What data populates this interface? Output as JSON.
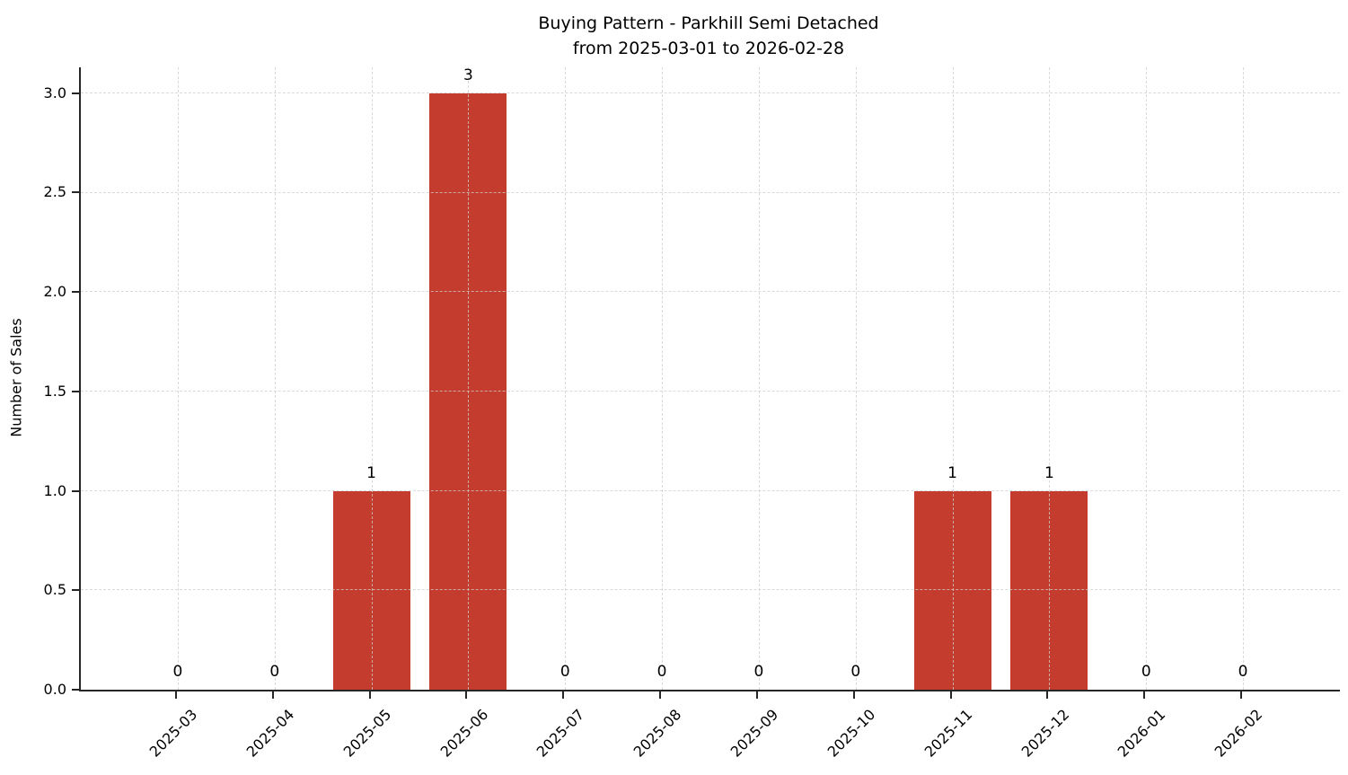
{
  "chart_data": {
    "type": "bar",
    "title": "Buying Pattern - Parkhill Semi Detached",
    "subtitle": "from 2025-03-01 to 2026-02-28",
    "xlabel": "",
    "ylabel": "Number of Sales",
    "categories": [
      "2025-03",
      "2025-04",
      "2025-05",
      "2025-06",
      "2025-07",
      "2025-08",
      "2025-09",
      "2025-10",
      "2025-11",
      "2025-12",
      "2026-01",
      "2026-02"
    ],
    "values": [
      0,
      0,
      1,
      3,
      0,
      0,
      0,
      0,
      1,
      1,
      0,
      0
    ],
    "value_labels": [
      "0",
      "0",
      "1",
      "3",
      "0",
      "0",
      "0",
      "0",
      "1",
      "1",
      "0",
      "0"
    ],
    "yticks": [
      0.0,
      0.5,
      1.0,
      1.5,
      2.0,
      2.5,
      3.0
    ],
    "ytick_labels": [
      "0.0",
      "0.5",
      "1.0",
      "1.5",
      "2.0",
      "2.5",
      "3.0"
    ],
    "ylim": [
      0,
      3.13
    ],
    "grid": true,
    "legend": false,
    "bar_color": "#c43c2d",
    "axis_color": "#262626",
    "background_color": "#ffffff"
  }
}
